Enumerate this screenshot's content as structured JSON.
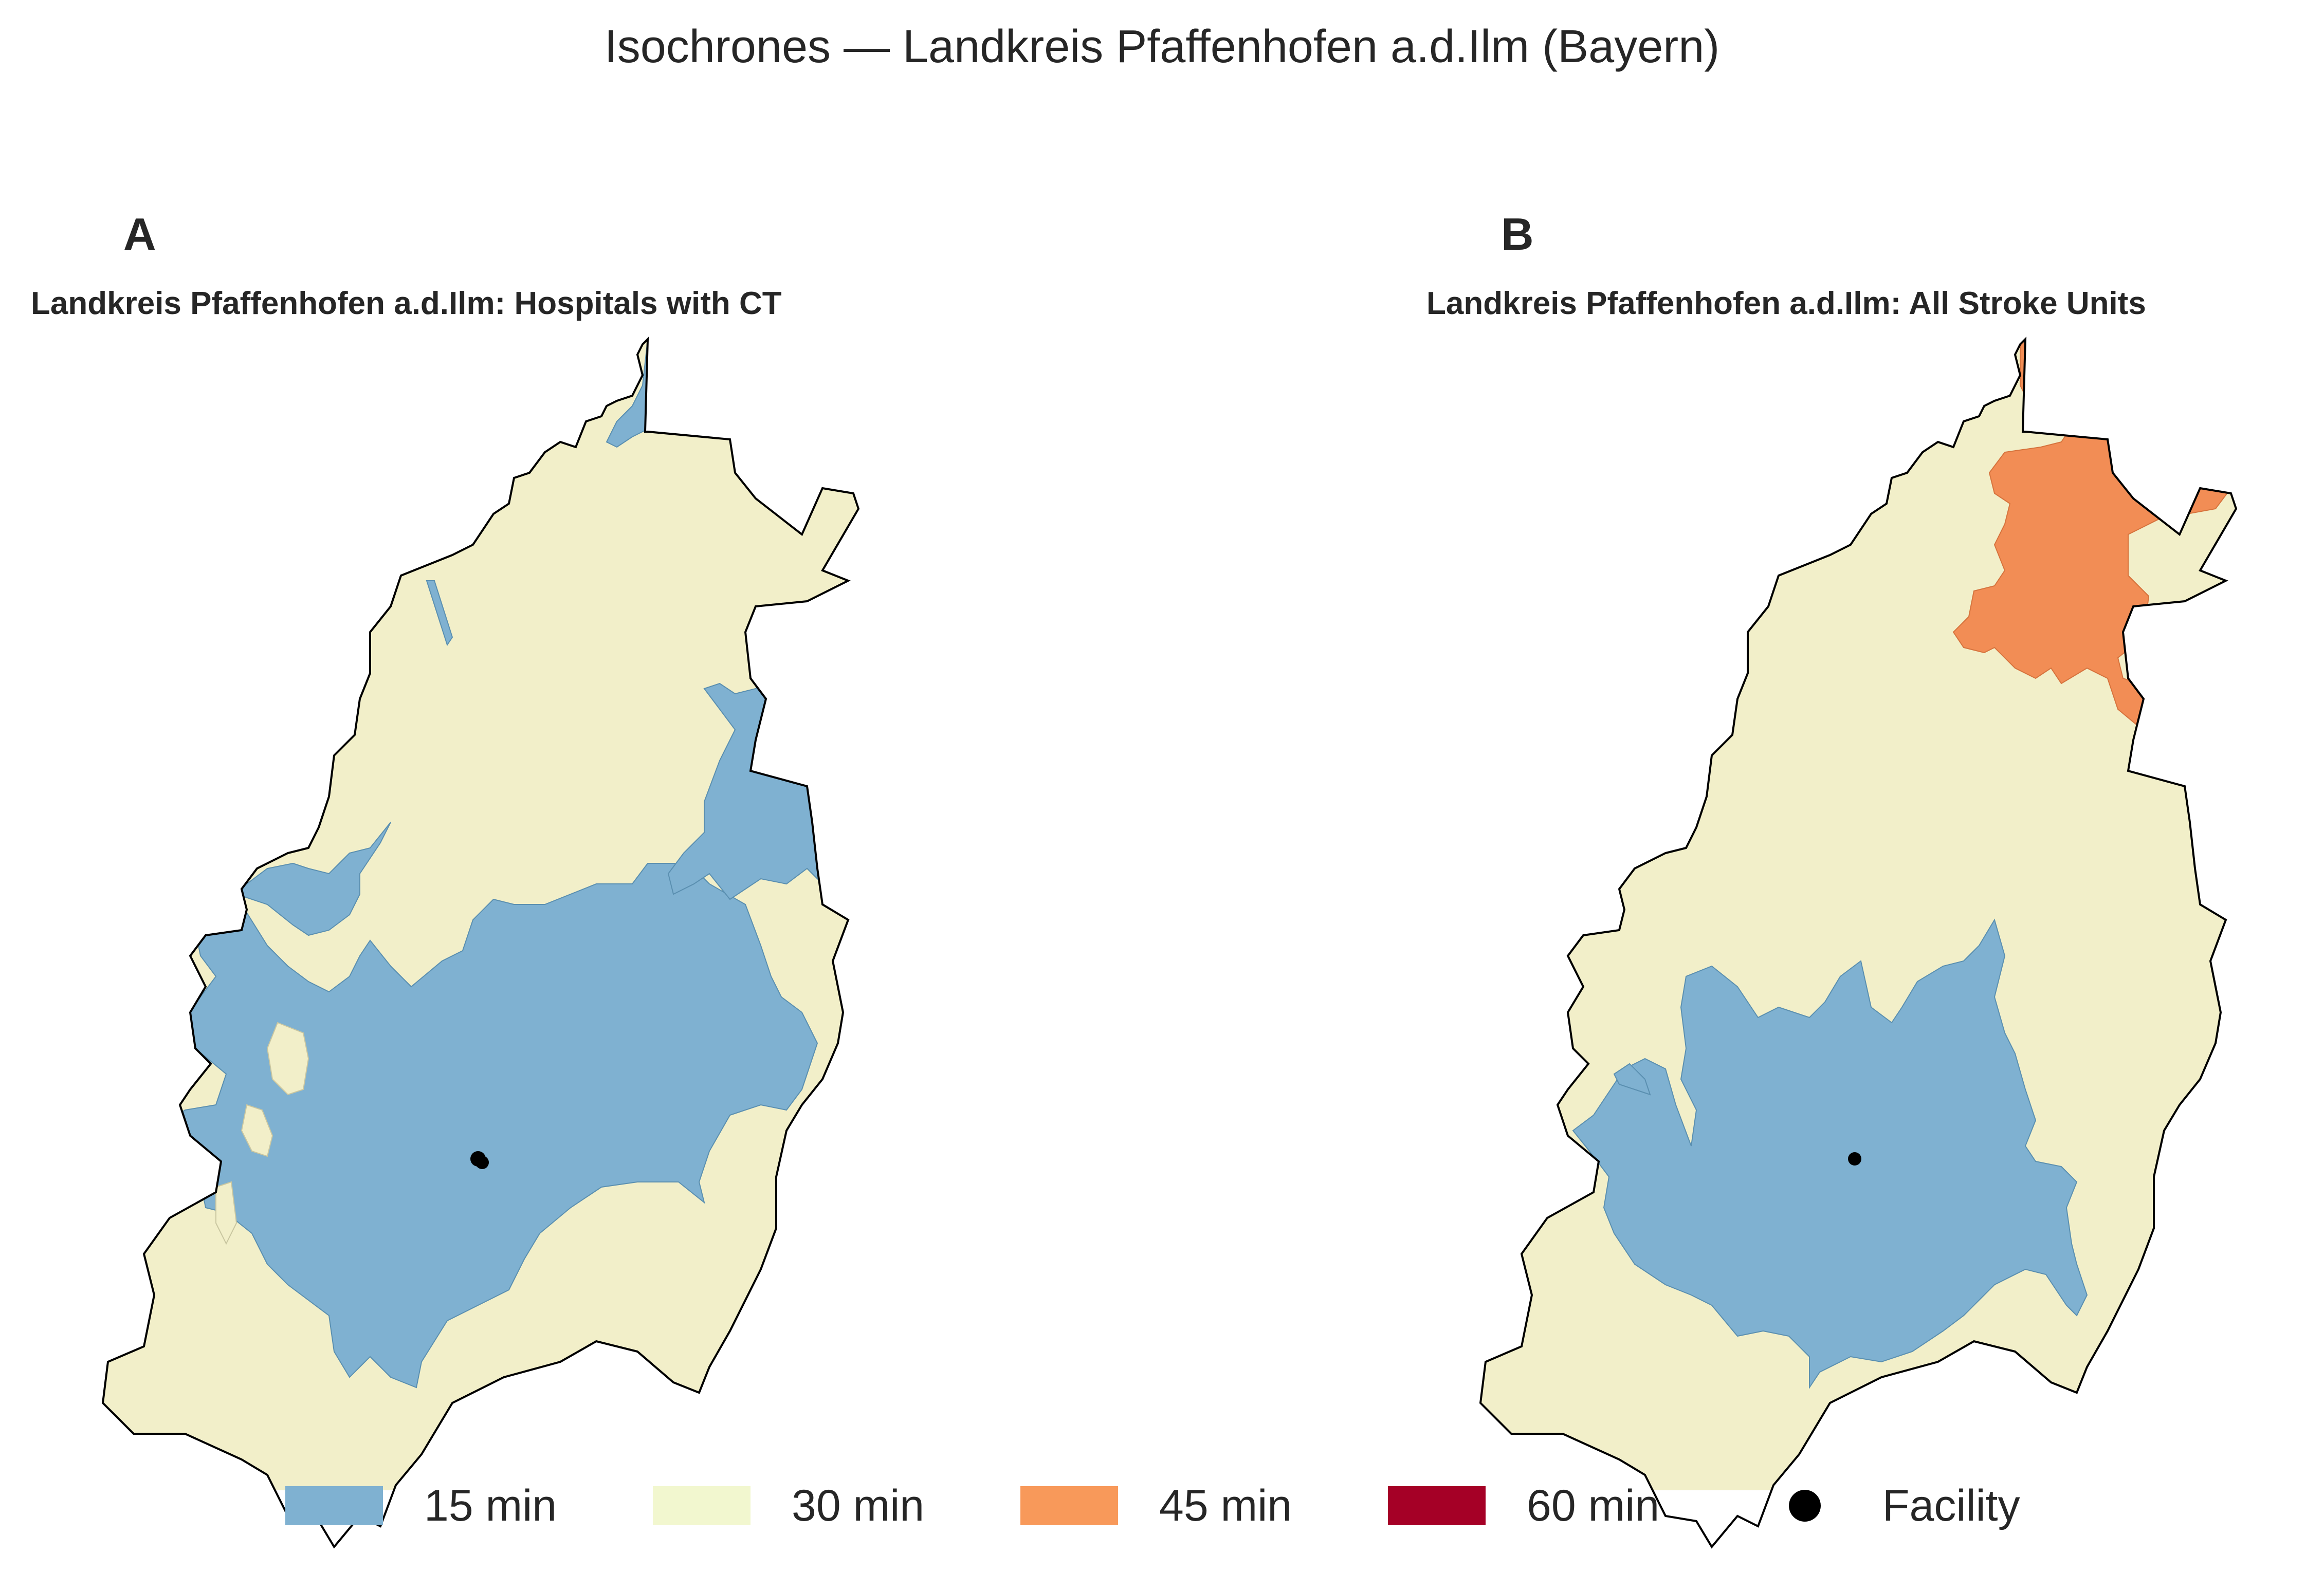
{
  "figure": {
    "title": "Isochrones — Landkreis Pfaffenhofen a.d.Ilm (Bayern)"
  },
  "panels": [
    {
      "letter": "A",
      "title": "Landkreis Pfaffenhofen a.d.Ilm: Hospitals with CT",
      "facility_marker": "black-dot"
    },
    {
      "letter": "B",
      "title": "Landkreis Pfaffenhofen a.d.Ilm: All Stroke Units",
      "facility_marker": "black-dot"
    }
  ],
  "legend": {
    "items": [
      {
        "label": "15 min",
        "color": "#7fb1d1"
      },
      {
        "label": "30 min",
        "color": "#f2efc9"
      },
      {
        "label": "45 min",
        "color": "#f28d55"
      },
      {
        "label": "60 min",
        "color": "#a50026"
      },
      {
        "label": "Facility",
        "icon": "black-dot"
      }
    ]
  },
  "colors": {
    "min15": "#7fb1d1",
    "min30": "#f2efc9",
    "min45": "#f28d55",
    "min60": "#a50026",
    "border": "#000000"
  }
}
